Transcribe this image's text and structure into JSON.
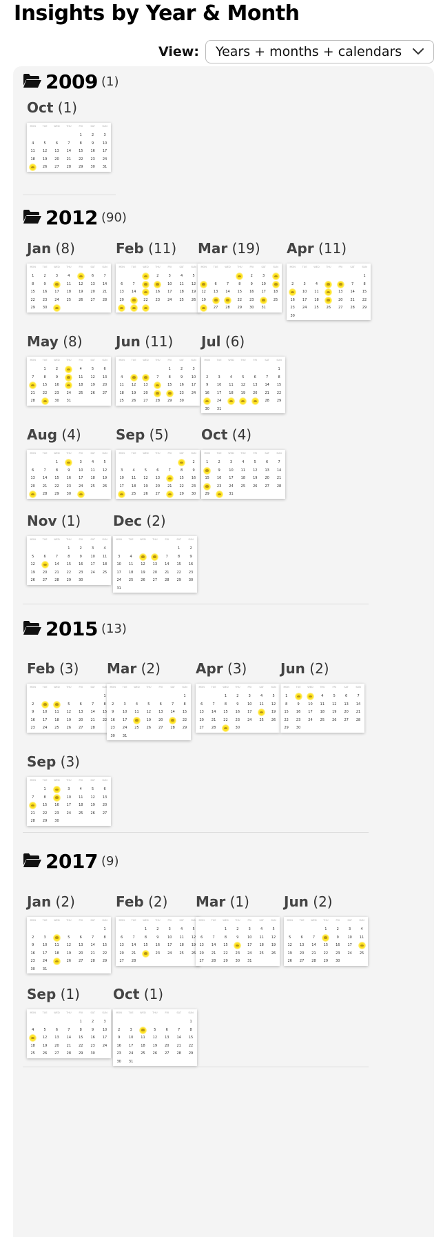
{
  "page": {
    "title": "Insights by Year & Month"
  },
  "view": {
    "label": "View:",
    "selected": "Years + months + calendars"
  },
  "weekday_labels": [
    "MON",
    "TUE",
    "WED",
    "THU",
    "FRI",
    "SAT",
    "SUN"
  ],
  "years": [
    {
      "year": "2009",
      "count": "(1)",
      "months": [
        {
          "name": "Oct",
          "count": "(1)",
          "start": 4,
          "days": 31,
          "insights": [
            25
          ]
        }
      ]
    },
    {
      "year": "2012",
      "count": "(90)",
      "months": [
        {
          "name": "Jan",
          "count": "(8)",
          "start": 0,
          "days": 31,
          "insights": [
            5,
            10,
            31
          ]
        },
        {
          "name": "Feb",
          "count": "(11)",
          "start": 2,
          "days": 29,
          "insights": [
            1,
            8,
            9,
            15,
            21,
            27,
            28,
            29
          ]
        },
        {
          "name": "Mar",
          "count": "(19)",
          "start": 3,
          "days": 31,
          "insights": [
            1,
            4,
            5,
            11,
            20,
            21,
            24,
            26
          ]
        },
        {
          "name": "Apr",
          "count": "(11)",
          "start": 6,
          "days": 30,
          "insights": [
            5,
            6,
            9,
            12,
            19
          ]
        },
        {
          "name": "May",
          "count": "(8)",
          "start": 1,
          "days": 31,
          "insights": [
            3,
            10,
            14,
            17,
            29
          ]
        },
        {
          "name": "Jun",
          "count": "(11)",
          "start": 4,
          "days": 30,
          "insights": [
            5,
            6,
            14,
            21,
            22
          ]
        },
        {
          "name": "Jul",
          "count": "(6)",
          "start": 6,
          "days": 31,
          "insights": [
            23,
            25,
            26,
            27
          ]
        },
        {
          "name": "Aug",
          "count": "(4)",
          "start": 2,
          "days": 31,
          "insights": [
            2,
            27,
            31
          ]
        },
        {
          "name": "Sep",
          "count": "(5)",
          "start": 5,
          "days": 30,
          "insights": [
            1,
            14,
            24,
            28
          ]
        },
        {
          "name": "Oct",
          "count": "(4)",
          "start": 0,
          "days": 31,
          "insights": [
            8,
            22,
            30
          ]
        },
        {
          "name": "Nov",
          "count": "(1)",
          "start": 3,
          "days": 30,
          "insights": [
            13
          ]
        },
        {
          "name": "Dec",
          "count": "(2)",
          "start": 5,
          "days": 31,
          "insights": [
            5,
            6
          ]
        }
      ]
    },
    {
      "year": "2015",
      "count": "(13)",
      "months": [
        {
          "name": "Feb",
          "count": "(3)",
          "start": 6,
          "days": 28,
          "insights": [
            3,
            4
          ]
        },
        {
          "name": "Mar",
          "count": "(2)",
          "start": 6,
          "days": 31,
          "insights": [
            18,
            21
          ]
        },
        {
          "name": "Apr",
          "count": "(3)",
          "start": 2,
          "days": 30,
          "insights": [
            18,
            29
          ]
        },
        {
          "name": "Jun",
          "count": "(2)",
          "start": 0,
          "days": 30,
          "insights": [
            2,
            3
          ]
        },
        {
          "name": "Sep",
          "count": "(3)",
          "start": 1,
          "days": 30,
          "insights": [
            2,
            9,
            14
          ]
        }
      ]
    },
    {
      "year": "2017",
      "count": "(9)",
      "months": [
        {
          "name": "Jan",
          "count": "(2)",
          "start": 6,
          "days": 31,
          "insights": [
            4,
            25
          ]
        },
        {
          "name": "Feb",
          "count": "(2)",
          "start": 2,
          "days": 28,
          "insights": [
            22
          ]
        },
        {
          "name": "Mar",
          "count": "(1)",
          "start": 2,
          "days": 31,
          "insights": [
            16
          ]
        },
        {
          "name": "Jun",
          "count": "(2)",
          "start": 3,
          "days": 30,
          "insights": [
            8,
            18
          ]
        },
        {
          "name": "Sep",
          "count": "(1)",
          "start": 4,
          "days": 30,
          "insights": [
            11
          ]
        },
        {
          "name": "Oct",
          "count": "(1)",
          "start": 6,
          "days": 31,
          "insights": [
            4
          ]
        }
      ]
    }
  ],
  "icons": {
    "folder": "folder-open-icon",
    "select": "chevron-down-icon"
  },
  "colors": {
    "insight_highlight": "#ffe11a",
    "panel_bg": "#f4f4f4"
  }
}
